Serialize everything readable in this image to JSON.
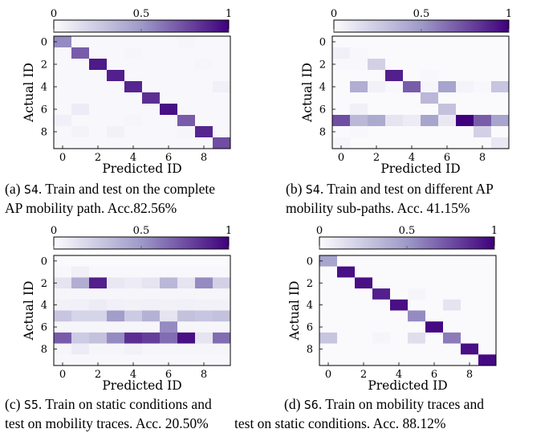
{
  "colors": {
    "low": "#fcfbfd",
    "high": "#3f007d",
    "frame": "#000000"
  },
  "chart_data": [
    {
      "type": "heatmap",
      "panel_label": "(a)",
      "scenario": "S4",
      "caption_line1": ". Train and test on the complete",
      "caption_line2": "AP mobility path. Acc.82.56%",
      "xlabel": "Predicted ID",
      "ylabel": "Actual ID",
      "x_ticks": [
        "0",
        "2",
        "4",
        "6",
        "8"
      ],
      "y_ticks": [
        "0",
        "2",
        "4",
        "6",
        "8"
      ],
      "colorbar_ticks": [
        "0",
        "0.5",
        "1"
      ],
      "colorbar_range": [
        0,
        1
      ],
      "matrix": [
        [
          0.55,
          0.02,
          0.02,
          0.02,
          0.02,
          0.02,
          0.02,
          0.03,
          0.02,
          0.02
        ],
        [
          0.02,
          0.7,
          0.02,
          0.02,
          0.03,
          0.02,
          0.02,
          0.02,
          0.02,
          0.02
        ],
        [
          0.02,
          0.02,
          0.92,
          0.02,
          0.02,
          0.02,
          0.02,
          0.02,
          0.03,
          0.02
        ],
        [
          0.02,
          0.02,
          0.02,
          0.9,
          0.02,
          0.02,
          0.02,
          0.02,
          0.02,
          0.02
        ],
        [
          0.02,
          0.02,
          0.02,
          0.02,
          0.88,
          0.02,
          0.02,
          0.02,
          0.02,
          0.06
        ],
        [
          0.02,
          0.02,
          0.02,
          0.02,
          0.02,
          0.85,
          0.02,
          0.02,
          0.02,
          0.02
        ],
        [
          0.02,
          0.08,
          0.02,
          0.02,
          0.02,
          0.02,
          0.95,
          0.02,
          0.02,
          0.02
        ],
        [
          0.06,
          0.02,
          0.02,
          0.02,
          0.03,
          0.02,
          0.02,
          0.7,
          0.02,
          0.02
        ],
        [
          0.02,
          0.04,
          0.02,
          0.05,
          0.02,
          0.02,
          0.02,
          0.03,
          0.88,
          0.02
        ],
        [
          0.02,
          0.02,
          0.02,
          0.02,
          0.02,
          0.02,
          0.02,
          0.02,
          0.02,
          0.75
        ]
      ]
    },
    {
      "type": "heatmap",
      "panel_label": "(b)",
      "scenario": "S4",
      "caption_line1": ". Train and test on different AP",
      "caption_line2": "mobility sub-paths. Acc. 41.15%",
      "xlabel": "Predicted ID",
      "ylabel": "Actual ID",
      "x_ticks": [
        "0",
        "2",
        "4",
        "6",
        "8"
      ],
      "y_ticks": [
        "0",
        "2",
        "4",
        "6",
        "8"
      ],
      "colorbar_ticks": [
        "0",
        "0.5",
        "1"
      ],
      "colorbar_range": [
        0,
        1
      ],
      "matrix": [
        [
          0.01,
          0.01,
          0.01,
          0.01,
          0.01,
          0.01,
          0.01,
          0.01,
          0.01,
          0.01
        ],
        [
          0.06,
          0.02,
          0.01,
          0.01,
          0.01,
          0.01,
          0.01,
          0.01,
          0.01,
          0.01
        ],
        [
          0.02,
          0.02,
          0.22,
          0.01,
          0.01,
          0.01,
          0.01,
          0.01,
          0.01,
          0.01
        ],
        [
          0.01,
          0.01,
          0.01,
          0.9,
          0.01,
          0.02,
          0.01,
          0.01,
          0.01,
          0.01
        ],
        [
          0.01,
          0.4,
          0.05,
          0.02,
          0.7,
          0.03,
          0.45,
          0.04,
          0.02,
          0.28
        ],
        [
          0.01,
          0.01,
          0.01,
          0.01,
          0.01,
          0.35,
          0.01,
          0.01,
          0.01,
          0.01
        ],
        [
          0.01,
          0.06,
          0.01,
          0.01,
          0.01,
          0.01,
          0.3,
          0.01,
          0.01,
          0.01
        ],
        [
          0.75,
          0.35,
          0.42,
          0.12,
          0.08,
          0.45,
          0.1,
          1.0,
          0.7,
          0.45
        ],
        [
          0.01,
          0.02,
          0.01,
          0.01,
          0.01,
          0.01,
          0.01,
          0.01,
          0.22,
          0.01
        ],
        [
          0.03,
          0.01,
          0.01,
          0.01,
          0.01,
          0.01,
          0.01,
          0.01,
          0.01,
          0.1
        ]
      ]
    },
    {
      "type": "heatmap",
      "panel_label": "(c)",
      "scenario": "S5",
      "caption_line1": ". Train on static conditions and",
      "caption_line2": "test on mobility traces. Acc. 20.50%",
      "xlabel": "Predicted ID",
      "ylabel": "Actual ID",
      "x_ticks": [
        "0",
        "2",
        "4",
        "6",
        "8"
      ],
      "y_ticks": [
        "0",
        "2",
        "4",
        "6",
        "8"
      ],
      "colorbar_ticks": [
        "0",
        "0.5",
        "1"
      ],
      "colorbar_range": [
        0,
        1
      ],
      "matrix": [
        [
          0.01,
          0.01,
          0.01,
          0.01,
          0.01,
          0.01,
          0.01,
          0.01,
          0.01,
          0.01
        ],
        [
          0.02,
          0.06,
          0.02,
          0.02,
          0.02,
          0.02,
          0.02,
          0.02,
          0.02,
          0.02
        ],
        [
          0.12,
          0.4,
          0.9,
          0.1,
          0.08,
          0.12,
          0.35,
          0.12,
          0.55,
          0.22
        ],
        [
          0.03,
          0.03,
          0.03,
          0.03,
          0.03,
          0.03,
          0.03,
          0.03,
          0.03,
          0.03
        ],
        [
          0.05,
          0.06,
          0.08,
          0.06,
          0.05,
          0.06,
          0.05,
          0.06,
          0.05,
          0.05
        ],
        [
          0.28,
          0.2,
          0.2,
          0.48,
          0.25,
          0.38,
          0.12,
          0.3,
          0.28,
          0.3
        ],
        [
          0.03,
          0.03,
          0.03,
          0.03,
          0.03,
          0.03,
          0.55,
          0.03,
          0.03,
          0.03
        ],
        [
          0.7,
          0.25,
          0.3,
          0.55,
          0.85,
          0.8,
          0.65,
          0.95,
          0.12,
          0.65
        ],
        [
          0.03,
          0.08,
          0.03,
          0.03,
          0.05,
          0.03,
          0.03,
          0.03,
          0.03,
          0.03
        ],
        [
          0.02,
          0.02,
          0.02,
          0.02,
          0.02,
          0.02,
          0.02,
          0.02,
          0.02,
          0.02
        ]
      ]
    },
    {
      "type": "heatmap",
      "panel_label": "(d)",
      "scenario": "S6",
      "caption_line1": ". Train on mobility traces and",
      "caption_line2": "test on static conditions. Acc. 88.12%",
      "xlabel": "Predicted ID",
      "ylabel": "Actual ID",
      "x_ticks": [
        "0",
        "2",
        "4",
        "6",
        "8"
      ],
      "y_ticks": [
        "0",
        "2",
        "4",
        "6",
        "8"
      ],
      "colorbar_ticks": [
        "0",
        "0.5",
        "1"
      ],
      "colorbar_range": [
        0,
        1
      ],
      "matrix": [
        [
          0.45,
          0.01,
          0.01,
          0.01,
          0.01,
          0.01,
          0.01,
          0.01,
          0.01,
          0.01
        ],
        [
          0.01,
          0.95,
          0.01,
          0.01,
          0.01,
          0.01,
          0.01,
          0.01,
          0.01,
          0.01
        ],
        [
          0.01,
          0.01,
          0.95,
          0.01,
          0.01,
          0.01,
          0.01,
          0.01,
          0.01,
          0.01
        ],
        [
          0.01,
          0.01,
          0.01,
          0.9,
          0.01,
          0.03,
          0.01,
          0.01,
          0.01,
          0.01
        ],
        [
          0.01,
          0.01,
          0.01,
          0.01,
          0.95,
          0.01,
          0.01,
          0.12,
          0.01,
          0.01
        ],
        [
          0.01,
          0.01,
          0.01,
          0.01,
          0.01,
          0.55,
          0.01,
          0.01,
          0.01,
          0.01
        ],
        [
          0.01,
          0.01,
          0.01,
          0.01,
          0.01,
          0.01,
          0.97,
          0.01,
          0.01,
          0.01
        ],
        [
          0.28,
          0.01,
          0.01,
          0.03,
          0.01,
          0.15,
          0.01,
          0.6,
          0.01,
          0.01
        ],
        [
          0.01,
          0.01,
          0.01,
          0.01,
          0.01,
          0.01,
          0.01,
          0.01,
          0.95,
          0.01
        ],
        [
          0.01,
          0.01,
          0.01,
          0.01,
          0.01,
          0.01,
          0.01,
          0.01,
          0.01,
          0.97
        ]
      ]
    }
  ]
}
